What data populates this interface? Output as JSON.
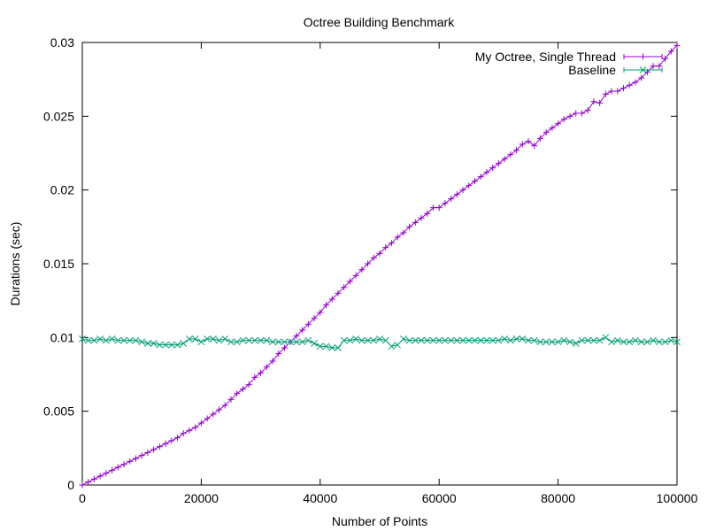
{
  "chart_data": {
    "type": "line",
    "title": "Octree Building Benchmark",
    "xlabel": "Number of Points",
    "ylabel": "Durations (sec)",
    "xlim": [
      0,
      100000
    ],
    "ylim": [
      0,
      0.03
    ],
    "xticks": [
      "0",
      "20000",
      "40000",
      "60000",
      "80000",
      "100000"
    ],
    "yticks": [
      "0",
      "0.005",
      "0.01",
      "0.015",
      "0.02",
      "0.025",
      "0.03"
    ],
    "grid": false,
    "legend_position": "top-right",
    "series": [
      {
        "name": "My Octree, Single Thread",
        "color": "#9400d3",
        "marker": "plus",
        "x": [
          0,
          1000,
          2000,
          3000,
          4000,
          5000,
          6000,
          7000,
          8000,
          9000,
          10000,
          11000,
          12000,
          13000,
          14000,
          15000,
          16000,
          17000,
          18000,
          19000,
          20000,
          21000,
          22000,
          23000,
          24000,
          25000,
          26000,
          27000,
          28000,
          29000,
          30000,
          31000,
          32000,
          33000,
          34000,
          35000,
          36000,
          37000,
          38000,
          39000,
          40000,
          41000,
          42000,
          43000,
          44000,
          45000,
          46000,
          47000,
          48000,
          49000,
          50000,
          51000,
          52000,
          53000,
          54000,
          55000,
          56000,
          57000,
          58000,
          59000,
          60000,
          61000,
          62000,
          63000,
          64000,
          65000,
          66000,
          67000,
          68000,
          69000,
          70000,
          71000,
          72000,
          73000,
          74000,
          75000,
          76000,
          77000,
          78000,
          79000,
          80000,
          81000,
          82000,
          83000,
          84000,
          85000,
          86000,
          87000,
          88000,
          89000,
          90000,
          91000,
          92000,
          93000,
          94000,
          95000,
          96000,
          97000,
          98000,
          99000,
          100000
        ],
        "y": [
          0.0,
          0.0002,
          0.0004,
          0.0006,
          0.0008,
          0.001,
          0.0012,
          0.0014,
          0.0016,
          0.0018,
          0.002,
          0.0022,
          0.0024,
          0.0026,
          0.0028,
          0.003,
          0.0032,
          0.0035,
          0.0037,
          0.0039,
          0.0042,
          0.0045,
          0.0048,
          0.0051,
          0.0054,
          0.0058,
          0.0062,
          0.0065,
          0.0068,
          0.0073,
          0.0076,
          0.008,
          0.0084,
          0.0089,
          0.0093,
          0.0097,
          0.0101,
          0.0105,
          0.0109,
          0.0113,
          0.0117,
          0.0122,
          0.0126,
          0.013,
          0.0134,
          0.0138,
          0.0142,
          0.0146,
          0.015,
          0.0154,
          0.0157,
          0.0161,
          0.0164,
          0.0168,
          0.0171,
          0.0175,
          0.0178,
          0.0181,
          0.0184,
          0.0188,
          0.0188,
          0.0191,
          0.0194,
          0.0197,
          0.02,
          0.0203,
          0.0206,
          0.0209,
          0.0212,
          0.0215,
          0.0218,
          0.0221,
          0.0224,
          0.0227,
          0.0231,
          0.0233,
          0.023,
          0.0235,
          0.0239,
          0.0242,
          0.0245,
          0.0248,
          0.025,
          0.0252,
          0.0252,
          0.0254,
          0.026,
          0.0259,
          0.0265,
          0.0267,
          0.0267,
          0.0269,
          0.0271,
          0.0273,
          0.0276,
          0.028,
          0.0284,
          0.0284,
          0.0289,
          0.0294,
          0.0298
        ]
      },
      {
        "name": "Baseline",
        "color": "#009e73",
        "marker": "x",
        "x": [
          0,
          1000,
          2000,
          3000,
          4000,
          5000,
          6000,
          7000,
          8000,
          9000,
          10000,
          11000,
          12000,
          13000,
          14000,
          15000,
          16000,
          17000,
          18000,
          19000,
          20000,
          21000,
          22000,
          23000,
          24000,
          25000,
          26000,
          27000,
          28000,
          29000,
          30000,
          31000,
          32000,
          33000,
          34000,
          35000,
          36000,
          37000,
          38000,
          39000,
          40000,
          41000,
          42000,
          43000,
          44000,
          45000,
          46000,
          47000,
          48000,
          49000,
          50000,
          51000,
          52000,
          53000,
          54000,
          55000,
          56000,
          57000,
          58000,
          59000,
          60000,
          61000,
          62000,
          63000,
          64000,
          65000,
          66000,
          67000,
          68000,
          69000,
          70000,
          71000,
          72000,
          73000,
          74000,
          75000,
          76000,
          77000,
          78000,
          79000,
          80000,
          81000,
          82000,
          83000,
          84000,
          85000,
          86000,
          87000,
          88000,
          89000,
          90000,
          91000,
          92000,
          93000,
          94000,
          95000,
          96000,
          97000,
          98000,
          99000,
          100000
        ],
        "y": [
          0.0099,
          0.0098,
          0.0098,
          0.0099,
          0.0098,
          0.0099,
          0.0098,
          0.0098,
          0.0098,
          0.0098,
          0.0097,
          0.0096,
          0.0096,
          0.0095,
          0.0095,
          0.0095,
          0.0095,
          0.0096,
          0.0099,
          0.0099,
          0.0097,
          0.0099,
          0.0099,
          0.0098,
          0.0099,
          0.0097,
          0.0097,
          0.0098,
          0.0098,
          0.0098,
          0.0098,
          0.0098,
          0.0097,
          0.0097,
          0.0097,
          0.0097,
          0.0097,
          0.0097,
          0.0098,
          0.0096,
          0.0094,
          0.0094,
          0.0093,
          0.0093,
          0.0098,
          0.0098,
          0.0099,
          0.0098,
          0.0098,
          0.0098,
          0.0099,
          0.0098,
          0.0094,
          0.0095,
          0.0099,
          0.0098,
          0.0098,
          0.0098,
          0.0098,
          0.0098,
          0.0098,
          0.0098,
          0.0098,
          0.0098,
          0.0098,
          0.0098,
          0.0098,
          0.0098,
          0.0098,
          0.0098,
          0.0098,
          0.0099,
          0.0098,
          0.0099,
          0.0099,
          0.0098,
          0.0098,
          0.0097,
          0.0097,
          0.0097,
          0.0097,
          0.0098,
          0.0097,
          0.0096,
          0.0098,
          0.0098,
          0.0098,
          0.0098,
          0.01,
          0.0097,
          0.0098,
          0.0097,
          0.0097,
          0.0098,
          0.0097,
          0.0097,
          0.0098,
          0.0097,
          0.0097,
          0.0098,
          0.0097
        ]
      }
    ]
  }
}
